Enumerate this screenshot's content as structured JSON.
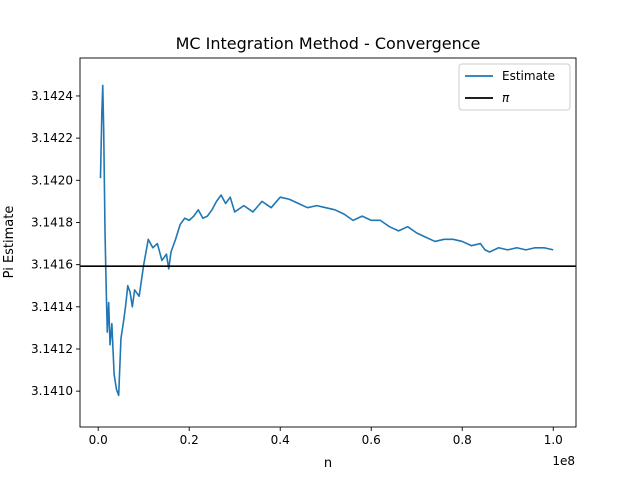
{
  "chart_data": {
    "type": "line",
    "title": "MC Integration Method - Convergence",
    "xlabel": "n",
    "ylabel": "Pi Estimate",
    "x_offset_label": "1e8",
    "x_scale": 100000000,
    "xlim": [
      -4000000,
      105000000
    ],
    "ylim": [
      3.14083,
      3.14258
    ],
    "x_ticks": [
      0,
      20000000,
      40000000,
      60000000,
      80000000,
      100000000
    ],
    "x_tick_labels": [
      "0.0",
      "0.2",
      "0.4",
      "0.6",
      "0.8",
      "1.0"
    ],
    "y_ticks": [
      3.141,
      3.1412,
      3.1414,
      3.1416,
      3.1418,
      3.142,
      3.1422,
      3.1424
    ],
    "y_tick_labels": [
      "3.1410",
      "3.1412",
      "3.1414",
      "3.1416",
      "3.1418",
      "3.1420",
      "3.1422",
      "3.1424"
    ],
    "grid": false,
    "legend_position": "top-right",
    "series": [
      {
        "name": "Estimate",
        "color": "#1f77b4",
        "x": [
          500000,
          800000,
          1000000,
          1200000,
          1500000,
          1800000,
          2000000,
          2300000,
          2600000,
          3000000,
          3500000,
          4000000,
          4500000,
          5000000,
          5500000,
          6000000,
          6500000,
          7000000,
          7500000,
          8000000,
          9000000,
          10000000,
          11000000,
          12000000,
          13000000,
          14000000,
          15000000,
          15500000,
          16000000,
          17000000,
          18000000,
          19000000,
          20000000,
          21000000,
          22000000,
          23000000,
          24000000,
          25000000,
          26000000,
          27000000,
          28000000,
          29000000,
          30000000,
          32000000,
          34000000,
          36000000,
          38000000,
          40000000,
          42000000,
          44000000,
          46000000,
          48000000,
          50000000,
          52000000,
          54000000,
          56000000,
          58000000,
          60000000,
          62000000,
          64000000,
          66000000,
          68000000,
          70000000,
          72000000,
          74000000,
          76000000,
          78000000,
          80000000,
          82000000,
          84000000,
          85000000,
          86000000,
          88000000,
          90000000,
          92000000,
          94000000,
          96000000,
          98000000,
          100000000
        ],
        "values": [
          3.14201,
          3.14232,
          3.14245,
          3.14225,
          3.14175,
          3.14145,
          3.14128,
          3.14142,
          3.14122,
          3.14132,
          3.14108,
          3.14101,
          3.14098,
          3.14125,
          3.14132,
          3.1414,
          3.1415,
          3.14147,
          3.1414,
          3.14148,
          3.14145,
          3.1416,
          3.14172,
          3.14168,
          3.1417,
          3.14162,
          3.14165,
          3.14158,
          3.14166,
          3.14172,
          3.14179,
          3.14182,
          3.14181,
          3.14183,
          3.14186,
          3.14182,
          3.14183,
          3.14186,
          3.1419,
          3.14193,
          3.14189,
          3.14192,
          3.14185,
          3.14188,
          3.14185,
          3.1419,
          3.14187,
          3.14192,
          3.14191,
          3.14189,
          3.14187,
          3.14188,
          3.14187,
          3.14186,
          3.14184,
          3.14181,
          3.14183,
          3.14181,
          3.14181,
          3.14178,
          3.14176,
          3.14178,
          3.14175,
          3.14173,
          3.14171,
          3.14172,
          3.14172,
          3.14171,
          3.14169,
          3.1417,
          3.14167,
          3.14166,
          3.14168,
          3.14167,
          3.14168,
          3.14167,
          3.14168,
          3.14168,
          3.14167
        ]
      },
      {
        "name": "π",
        "color": "#000000",
        "kind": "horizontal-line",
        "y": 3.14159265
      }
    ]
  }
}
